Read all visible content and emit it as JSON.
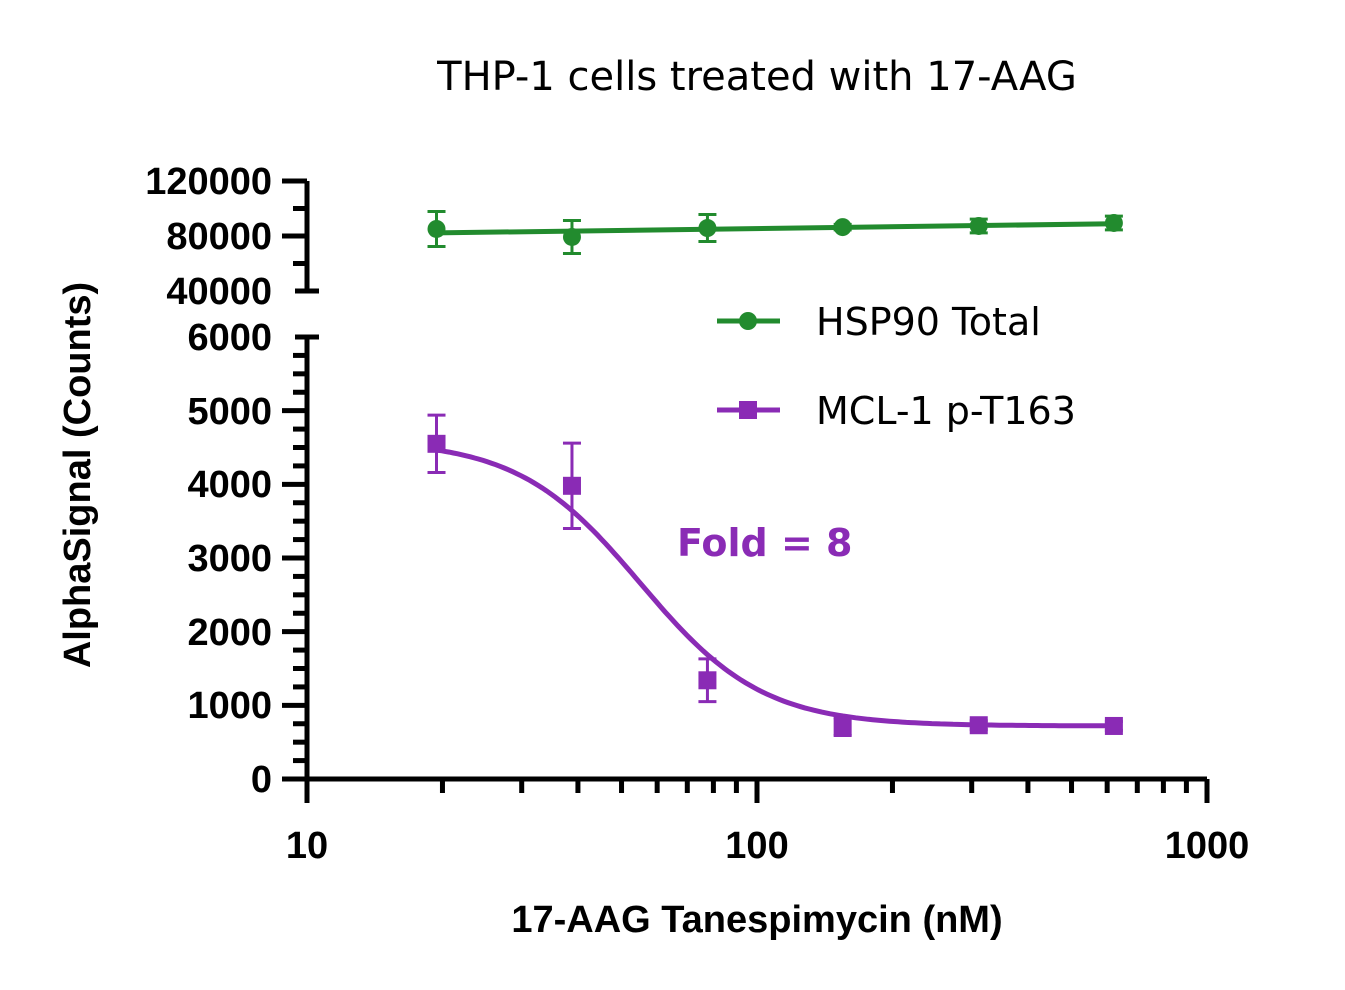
{
  "chart_data": {
    "type": "line",
    "title": "THP-1 cells treated with 17-AAG",
    "xlabel": "17-AAG Tanespimycin (nM)",
    "ylabel": "AlphaSignal (Counts)",
    "xscale": "log",
    "xlim": [
      10,
      1000
    ],
    "x_ticks": [
      10,
      100,
      1000
    ],
    "x_tick_labels": [
      "10",
      "100",
      "1000"
    ],
    "y_axis_broken": true,
    "y_segments": [
      {
        "name": "lower",
        "ylim": [
          0,
          6000
        ],
        "ticks": [
          0,
          1000,
          2000,
          3000,
          4000,
          5000,
          6000
        ],
        "tick_labels": [
          "0",
          "1000",
          "2000",
          "3000",
          "4000",
          "5000",
          "6000"
        ],
        "minor_step": 250
      },
      {
        "name": "upper",
        "ylim": [
          40000,
          120000
        ],
        "ticks": [
          40000,
          80000,
          120000
        ],
        "tick_labels": [
          "40000",
          "80000",
          "120000"
        ],
        "minor_step": 20000
      }
    ],
    "grid": false,
    "legend_position": "right",
    "series": [
      {
        "name": "HSP90 Total",
        "color": "#228B2E",
        "marker": "circle",
        "fit": "linear",
        "x": [
          19.4,
          38.8,
          77.6,
          155,
          311,
          621
        ],
        "y": [
          85100,
          79300,
          85800,
          86500,
          87300,
          89500
        ],
        "error": [
          12700,
          12000,
          9800,
          2000,
          5000,
          5000
        ]
      },
      {
        "name": "MCL-1 p-T163",
        "color": "#8A2BB5",
        "marker": "square",
        "fit": "sigmoidal",
        "x": [
          19.4,
          38.8,
          77.6,
          155,
          311,
          621
        ],
        "y": [
          4550,
          3980,
          1340,
          710,
          730,
          720
        ],
        "error": [
          390,
          580,
          290,
          120,
          60,
          60
        ]
      }
    ],
    "annotations": [
      {
        "text": "Fold = 8",
        "color": "#8A2BB5"
      }
    ]
  }
}
